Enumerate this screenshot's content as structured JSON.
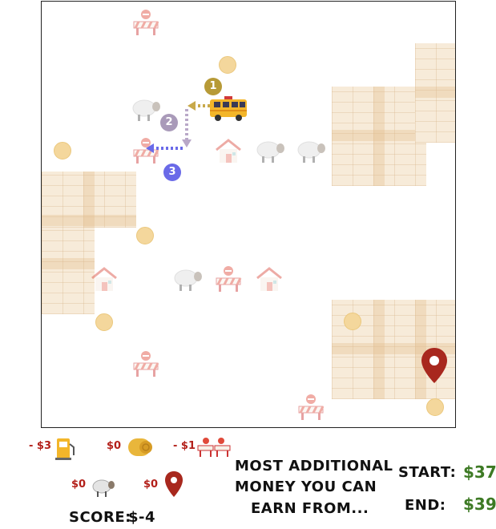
{
  "board": {
    "route_steps": [
      "1",
      "2",
      "3"
    ],
    "step_colors": {
      "1": "#b79a37",
      "2": "#a99ab9",
      "3": "#6a6ae8"
    },
    "objects": {
      "coins": 7,
      "barriers": 6,
      "houses": 3,
      "sheep": 4,
      "vehicle": "school-bus-icon",
      "destination": "map-pin-icon"
    }
  },
  "legend": {
    "fuel_cost": "- $3",
    "coin_value": "$0",
    "barrier_cost": "- $1",
    "sheep_value": "$0",
    "destination_value": "$0"
  },
  "score": {
    "label": "SCORE:",
    "value": "$-4"
  },
  "question": {
    "line1": "MOST ADDITIONAL",
    "line2": "MONEY YOU CAN",
    "line3": "EARN FROM..."
  },
  "money": {
    "start_label": "START:",
    "start_value": "$37",
    "end_label": "END:",
    "end_value": "$39"
  },
  "colors": {
    "cost_red": "#b3201a",
    "money_green": "#3d7a24",
    "pin_red": "#a8281e"
  }
}
